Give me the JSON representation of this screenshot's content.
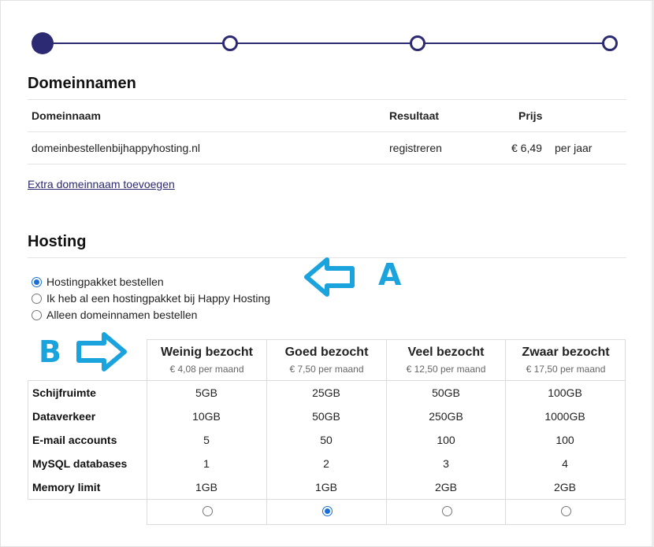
{
  "domains": {
    "title": "Domeinnamen",
    "headers": {
      "name": "Domeinnaam",
      "result": "Resultaat",
      "price": "Prijs"
    },
    "rows": [
      {
        "name": "domeinbestellenbijhappyhosting.nl",
        "result": "registreren",
        "price": "€ 6,49",
        "period": "per jaar"
      }
    ],
    "extra_link": "Extra domeinnaam toevoegen"
  },
  "hosting": {
    "title": "Hosting",
    "options": [
      {
        "label": "Hostingpakket bestellen",
        "checked": true
      },
      {
        "label": "Ik heb al een hostingpakket bij Happy Hosting",
        "checked": false
      },
      {
        "label": "Alleen domeinnamen bestellen",
        "checked": false
      }
    ],
    "annotations": {
      "a": "A",
      "b": "B"
    },
    "plans": [
      {
        "name": "Weinig bezocht",
        "price": "€ 4,08 per maand",
        "selected": false
      },
      {
        "name": "Goed bezocht",
        "price": "€ 7,50 per maand",
        "selected": true
      },
      {
        "name": "Veel bezocht",
        "price": "€ 12,50 per maand",
        "selected": false
      },
      {
        "name": "Zwaar bezocht",
        "price": "€ 17,50 per maand",
        "selected": false
      }
    ],
    "features": [
      {
        "label": "Schijfruimte",
        "values": [
          "5GB",
          "25GB",
          "50GB",
          "100GB"
        ]
      },
      {
        "label": "Dataverkeer",
        "values": [
          "10GB",
          "50GB",
          "250GB",
          "1000GB"
        ]
      },
      {
        "label": "E-mail accounts",
        "values": [
          "5",
          "50",
          "100",
          "100"
        ]
      },
      {
        "label": "MySQL databases",
        "values": [
          "1",
          "2",
          "3",
          "4"
        ]
      },
      {
        "label": "Memory limit",
        "values": [
          "1GB",
          "1GB",
          "2GB",
          "2GB"
        ]
      }
    ]
  },
  "colors": {
    "primary": "#2b2a72",
    "annotation": "#1aa3dc",
    "radio_checked": "#1a6fd6"
  }
}
